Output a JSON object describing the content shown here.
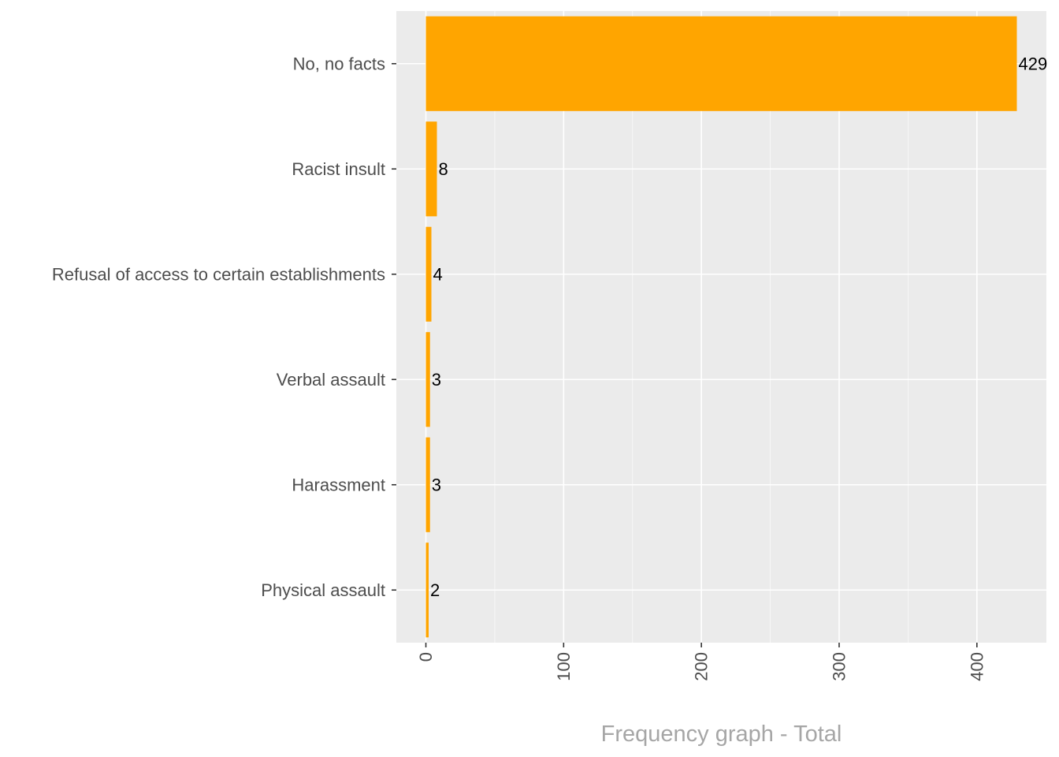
{
  "chart_data": {
    "type": "bar",
    "orientation": "horizontal",
    "categories": [
      "No, no facts",
      "Racist insult",
      "Refusal of access to certain establishments",
      "Verbal assault",
      "Harassment",
      "Physical assault"
    ],
    "values": [
      429,
      8,
      4,
      3,
      3,
      2
    ],
    "data_labels": [
      "429",
      "8",
      "4",
      "3",
      "3",
      "2"
    ],
    "title": "",
    "xlabel": "Frequency graph - Total",
    "ylabel": "",
    "xlim": [
      -21.45,
      450.45
    ],
    "x_ticks": [
      0,
      100,
      200,
      300,
      400
    ],
    "x_tick_labels": [
      "0",
      "100",
      "200",
      "300",
      "400"
    ],
    "x_tick_label_rotation": "vertical",
    "grid": true,
    "legend": "none",
    "colors": {
      "bar": "#FFA500",
      "panel_background": "#EBEBEB",
      "grid": "#FFFFFF",
      "category_text": "#4D4D4D",
      "data_label_text": "#000000",
      "axis_title_text": "#A6A6A6"
    }
  }
}
